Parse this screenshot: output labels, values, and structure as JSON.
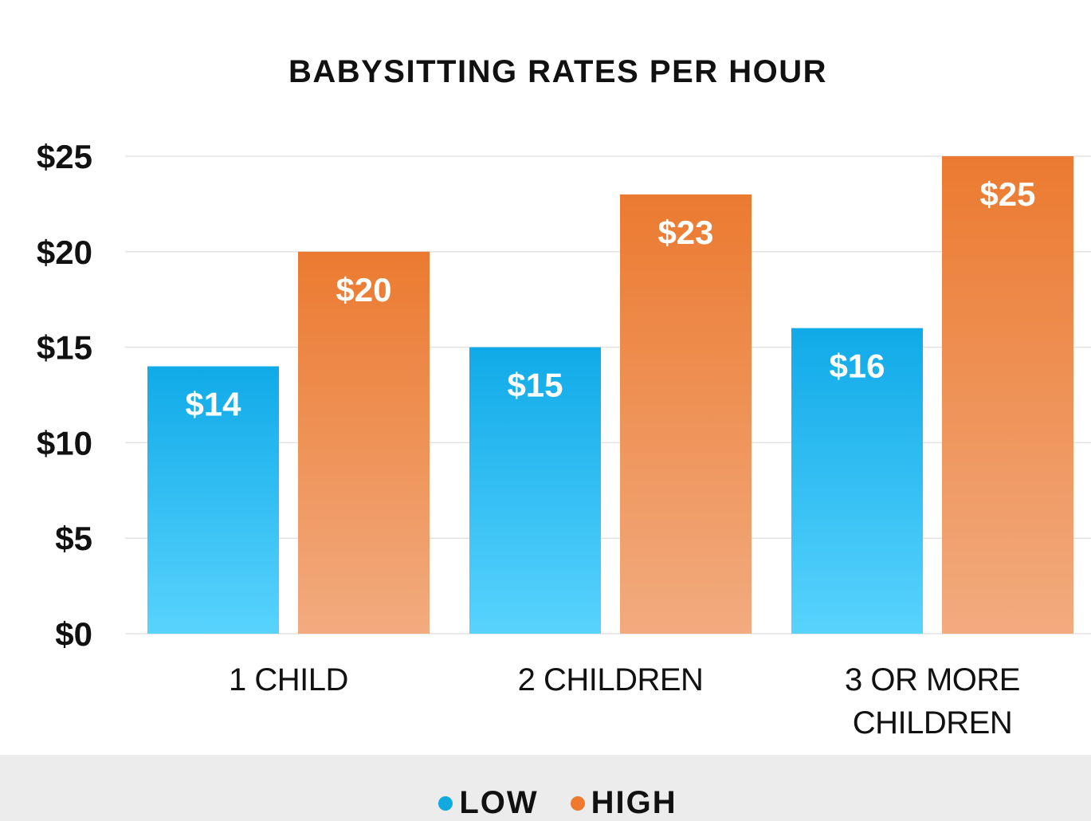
{
  "chart_data": {
    "type": "bar",
    "title": "BABYSITTING RATES PER HOUR",
    "categories": [
      [
        "1 CHILD"
      ],
      [
        "2 CHILDREN"
      ],
      [
        "3 OR MORE",
        "CHILDREN"
      ]
    ],
    "series": [
      {
        "name": "LOW",
        "values": [
          14,
          15,
          16
        ],
        "labels": [
          "$14",
          "$15",
          "$16"
        ],
        "color_top": "#10aae8",
        "color_bottom": "#58d3fd",
        "legend_color": "#12a9e0"
      },
      {
        "name": "HIGH",
        "values": [
          20,
          23,
          25
        ],
        "labels": [
          "$20",
          "$23",
          "$25"
        ],
        "color_top": "#eb7a30",
        "color_bottom": "#f2ab7f",
        "legend_color": "#ee7a30"
      }
    ],
    "ylim": [
      0,
      25
    ],
    "yticks": [
      0,
      5,
      10,
      15,
      20,
      25
    ],
    "ytick_labels": [
      "$0",
      "$5",
      "$10",
      "$15",
      "$20",
      "$25"
    ],
    "grid": true,
    "legend_position": "bottom"
  }
}
